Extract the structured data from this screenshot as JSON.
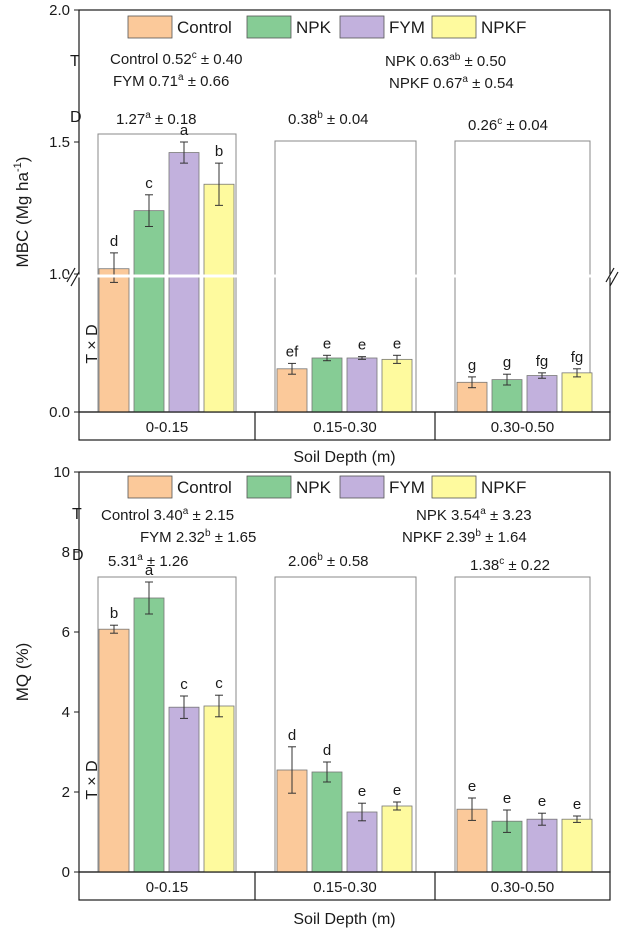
{
  "colors": {
    "Control": "#fbc99a",
    "NPK": "#86cc95",
    "FYM": "#c2b1dd",
    "NPKF": "#fefa9e",
    "axis": "#1a1a1a",
    "box": "#888888"
  },
  "chart_data": [
    {
      "id": "mbc",
      "type": "bar",
      "title": "",
      "xlabel": "Soil Depth (m)",
      "ylabel": "MBC (Mg ha",
      "ylabel_sup": "-1",
      "ylabel_close": ")",
      "categories": [
        "0-0.15",
        "0.15-0.30",
        "0.30-0.50"
      ],
      "legend": [
        "Control",
        "NPK",
        "FYM",
        "NPKF"
      ],
      "y_ticks": [
        "0.0",
        "1.0",
        "1.5",
        "2.0"
      ],
      "axis_break": true,
      "lower_range": [
        0,
        1.0
      ],
      "upper_range": [
        1.0,
        2.0
      ],
      "series": [
        {
          "name": "Control",
          "values": [
            1.02,
            0.32,
            0.22
          ],
          "errors": [
            0.06,
            0.04,
            0.04
          ],
          "letters": [
            "d",
            "ef",
            "g"
          ]
        },
        {
          "name": "NPK",
          "values": [
            1.24,
            0.4,
            0.24
          ],
          "errors": [
            0.06,
            0.02,
            0.04
          ],
          "letters": [
            "c",
            "e",
            "g"
          ]
        },
        {
          "name": "FYM",
          "values": [
            1.46,
            0.4,
            0.27
          ],
          "errors": [
            0.04,
            0.01,
            0.02
          ],
          "letters": [
            "a",
            "e",
            "fg"
          ]
        },
        {
          "name": "NPKF",
          "values": [
            1.34,
            0.39,
            0.29
          ],
          "errors": [
            0.08,
            0.03,
            0.03
          ],
          "letters": [
            "b",
            "e",
            "fg"
          ]
        }
      ],
      "annotations": {
        "T_label": "T",
        "D_label": "D",
        "TD_label": "T × D",
        "T_lines": [
          {
            "name": "Control",
            "value": "0.52",
            "sup": "c",
            "sd": "± 0.40"
          },
          {
            "name": "FYM",
            "value": "0.71",
            "sup": "a",
            "sd": "± 0.66"
          },
          {
            "name": "NPK",
            "value": "0.63",
            "sup": "ab",
            "sd": "± 0.50"
          },
          {
            "name": "NPKF",
            "value": "0.67",
            "sup": "a",
            "sd": "± 0.54"
          }
        ],
        "D_values": [
          {
            "value": "1.27",
            "sup": "a",
            "sd": "± 0.18"
          },
          {
            "value": "0.38",
            "sup": "b",
            "sd": "± 0.04"
          },
          {
            "value": "0.26",
            "sup": "c",
            "sd": "±  0.04"
          }
        ]
      }
    },
    {
      "id": "mq",
      "type": "bar",
      "title": "",
      "xlabel": "Soil Depth (m)",
      "ylabel": "MQ (%)",
      "categories": [
        "0-0.15",
        "0.15-0.30",
        "0.30-0.50"
      ],
      "legend": [
        "Control",
        "NPK",
        "FYM",
        "NPKF"
      ],
      "y_ticks": [
        "0",
        "2",
        "4",
        "6",
        "8",
        "10"
      ],
      "ylim": [
        0,
        10
      ],
      "series": [
        {
          "name": "Control",
          "values": [
            6.07,
            2.55,
            1.57
          ],
          "errors": [
            0.1,
            0.58,
            0.28
          ],
          "letters": [
            "b",
            "d",
            "e"
          ]
        },
        {
          "name": "NPK",
          "values": [
            6.85,
            2.5,
            1.27
          ],
          "errors": [
            0.4,
            0.25,
            0.28
          ],
          "letters": [
            "a",
            "d",
            "e"
          ]
        },
        {
          "name": "FYM",
          "values": [
            4.12,
            1.5,
            1.32
          ],
          "errors": [
            0.28,
            0.22,
            0.15
          ],
          "letters": [
            "c",
            "e",
            "e"
          ]
        },
        {
          "name": "NPKF",
          "values": [
            4.15,
            1.65,
            1.32
          ],
          "errors": [
            0.27,
            0.1,
            0.08
          ],
          "letters": [
            "c",
            "e",
            "e"
          ]
        }
      ],
      "annotations": {
        "T_label": "T",
        "D_label": "D",
        "TD_label": "T × D",
        "T_lines": [
          {
            "name": "Control",
            "value": "3.40",
            "sup": "a",
            "sd": "± 2.15"
          },
          {
            "name": "FYM",
            "value": "2.32",
            "sup": "b",
            "sd": "± 1.65"
          },
          {
            "name": "NPK",
            "value": "3.54",
            "sup": "a",
            "sd": "± 3.23"
          },
          {
            "name": "NPKF",
            "value": "2.39",
            "sup": "b",
            "sd": "± 1.64"
          }
        ],
        "D_values": [
          {
            "value": "5.31",
            "sup": "a",
            "sd": "± 1.26"
          },
          {
            "value": "2.06",
            "sup": "b",
            "sd": "± 0.58"
          },
          {
            "value": "1.38",
            "sup": "c",
            "sd": "± 0.22"
          }
        ]
      }
    }
  ]
}
